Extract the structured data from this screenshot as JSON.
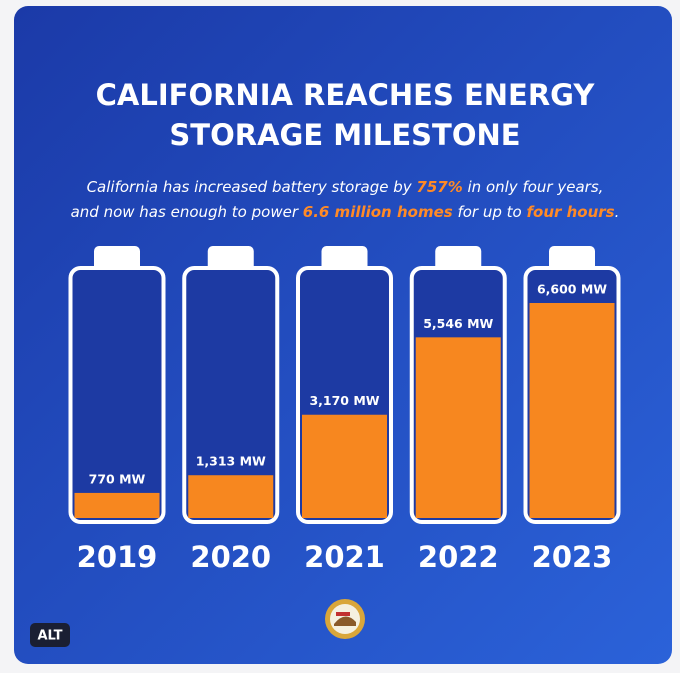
{
  "chart_data": {
    "type": "battery",
    "title": [
      "CALIFORNIA REACHES ENERGY",
      "STORAGE MILESTONE"
    ],
    "subtitle": [
      [
        {
          "text": "California has increased battery storage by "
        },
        {
          "text": "757%",
          "highlight": true
        },
        {
          "text": " in only four years,"
        }
      ],
      [
        {
          "text": "and now has enough to power "
        },
        {
          "text": "6.6 million homes",
          "highlight": true
        },
        {
          "text": " for up to "
        },
        {
          "text": "four hours",
          "highlight": true
        },
        {
          "text": "."
        }
      ]
    ],
    "highlight_color": "#ff8a26",
    "categories": [
      "2019",
      "2020",
      "2021",
      "2022",
      "2023"
    ],
    "values": [
      770,
      1313,
      3170,
      5546,
      6600
    ],
    "value_labels": [
      "770 MW",
      "1,313 MW",
      "3,170 MW",
      "5,546 MW",
      "6,600 MW"
    ],
    "color": "#f7871f",
    "badge": "ALT"
  }
}
